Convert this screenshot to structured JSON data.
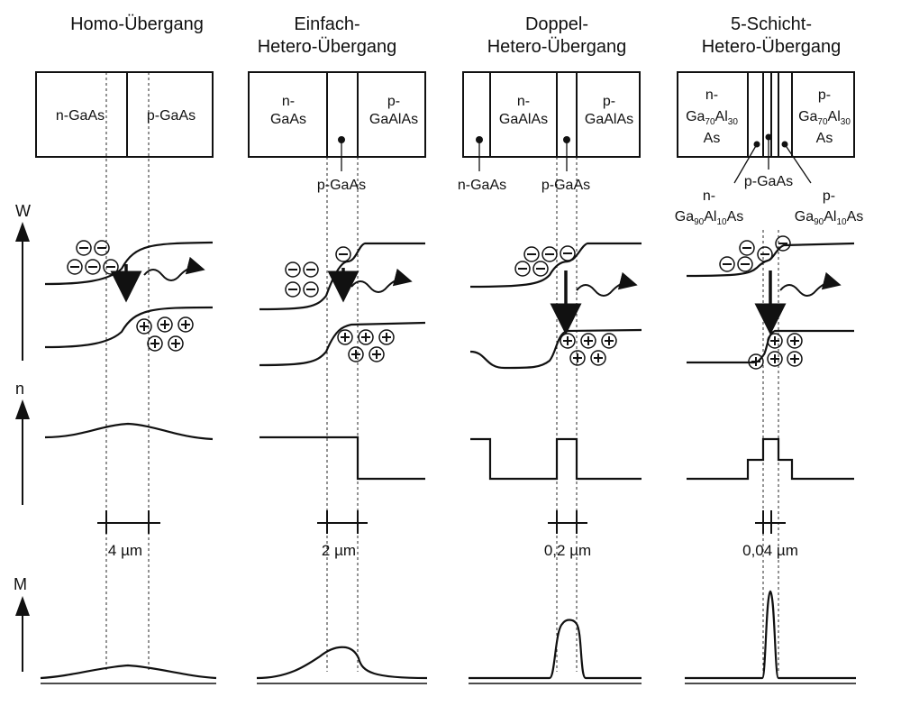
{
  "axes": {
    "energy": "W",
    "refractive_index": "n",
    "mode": "M"
  },
  "columns": [
    {
      "title_lines": [
        "Homo-Übergang"
      ],
      "box_labels": [
        [
          "n-GaAs"
        ],
        [
          "p-GaAs"
        ]
      ],
      "dimension": "4 µm"
    },
    {
      "title_lines": [
        "Einfach-",
        "Hetero-Übergang"
      ],
      "box_labels": [
        [
          "n-",
          "GaAs"
        ],
        [
          "p-",
          "GaAlAs"
        ]
      ],
      "callouts": [
        "p-GaAs"
      ],
      "dimension": "2 µm"
    },
    {
      "title_lines": [
        "Doppel-",
        "Hetero-Übergang"
      ],
      "box_labels": [
        [
          "n-",
          "GaAlAs"
        ],
        [
          "p-",
          "GaAlAs"
        ]
      ],
      "callouts": [
        "n-GaAs",
        "p-GaAs"
      ],
      "dimension": "0,2 µm"
    },
    {
      "title_lines": [
        "5-Schicht-",
        "Hetero-Übergang"
      ],
      "box_labels": [
        [
          "n-",
          "Ga",
          "70",
          "Al",
          "30",
          "As"
        ],
        [
          "p-",
          "Ga",
          "70",
          "Al",
          "30",
          "As"
        ]
      ],
      "callouts": [
        "p-GaAs",
        "n-",
        "p-",
        "Ga",
        "90",
        "Al",
        "10",
        "As"
      ],
      "dimension": "0,04 µm"
    }
  ],
  "symbols": {
    "electron": "−",
    "hole": "+"
  }
}
